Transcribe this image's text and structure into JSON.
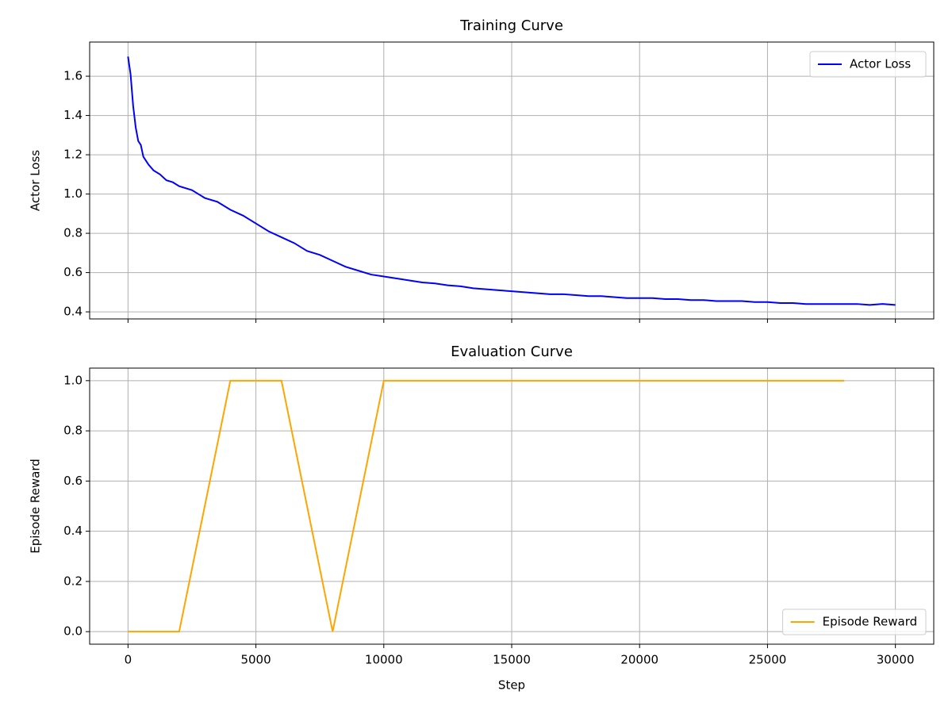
{
  "chart_data": [
    {
      "type": "line",
      "title": "Training Curve",
      "ylabel": "Actor Loss",
      "x": [
        0,
        100,
        200,
        300,
        400,
        500,
        600,
        800,
        1000,
        1250,
        1500,
        1750,
        2000,
        2500,
        3000,
        3500,
        4000,
        4500,
        5000,
        5500,
        6000,
        6500,
        7000,
        7500,
        8000,
        8500,
        9000,
        9500,
        10000,
        10500,
        11000,
        11500,
        12000,
        12500,
        13000,
        13500,
        14000,
        14500,
        15000,
        15500,
        16000,
        16500,
        17000,
        17500,
        18000,
        18500,
        19000,
        19500,
        20000,
        20500,
        21000,
        21500,
        22000,
        22500,
        23000,
        23500,
        24000,
        24500,
        25000,
        25500,
        26000,
        26500,
        27000,
        27500,
        28000,
        28500,
        29000,
        29500,
        30000
      ],
      "series": [
        {
          "name": "Actor Loss",
          "color": "#0000ff",
          "values": [
            1.7,
            1.61,
            1.45,
            1.34,
            1.27,
            1.25,
            1.19,
            1.15,
            1.12,
            1.1,
            1.07,
            1.06,
            1.04,
            1.02,
            0.98,
            0.96,
            0.92,
            0.89,
            0.85,
            0.81,
            0.78,
            0.75,
            0.71,
            0.69,
            0.66,
            0.63,
            0.61,
            0.59,
            0.58,
            0.57,
            0.56,
            0.55,
            0.545,
            0.535,
            0.53,
            0.52,
            0.515,
            0.51,
            0.505,
            0.5,
            0.495,
            0.49,
            0.49,
            0.485,
            0.48,
            0.48,
            0.475,
            0.47,
            0.47,
            0.47,
            0.465,
            0.465,
            0.46,
            0.46,
            0.455,
            0.455,
            0.455,
            0.45,
            0.45,
            0.445,
            0.445,
            0.44,
            0.44,
            0.44,
            0.44,
            0.44,
            0.435,
            0.44,
            0.435
          ]
        }
      ],
      "xlim": [
        -1500,
        31500
      ],
      "ylim": [
        0.364,
        1.774
      ],
      "yticks": [
        0.4,
        0.6,
        0.8,
        {
          "value": 1,
          "label": "1.0"
        },
        1.2,
        1.4,
        1.6
      ],
      "grid": true,
      "legend": "upper right"
    },
    {
      "type": "line",
      "title": "Evaluation Curve",
      "ylabel": "Episode Reward",
      "xlabel": "Step",
      "x": [
        0,
        2000,
        4000,
        6000,
        8000,
        10000,
        12000,
        14000,
        16000,
        18000,
        20000,
        22000,
        24000,
        26000,
        28000
      ],
      "series": [
        {
          "name": "Episode Reward",
          "color": "#ffa500",
          "values": [
            0,
            0,
            1,
            1,
            0,
            1,
            1,
            1,
            1,
            1,
            1,
            1,
            1,
            1,
            1
          ]
        }
      ],
      "xlim": [
        -1500,
        31500
      ],
      "ylim": [
        -0.05,
        1.05
      ],
      "xticks": [
        0,
        5000,
        10000,
        15000,
        20000,
        25000,
        30000
      ],
      "yticks": [
        {
          "value": 0,
          "label": "0.0"
        },
        0.2,
        0.4,
        0.6,
        0.8,
        {
          "value": 1,
          "label": "1.0"
        }
      ],
      "grid": true,
      "legend": "lower right"
    }
  ]
}
